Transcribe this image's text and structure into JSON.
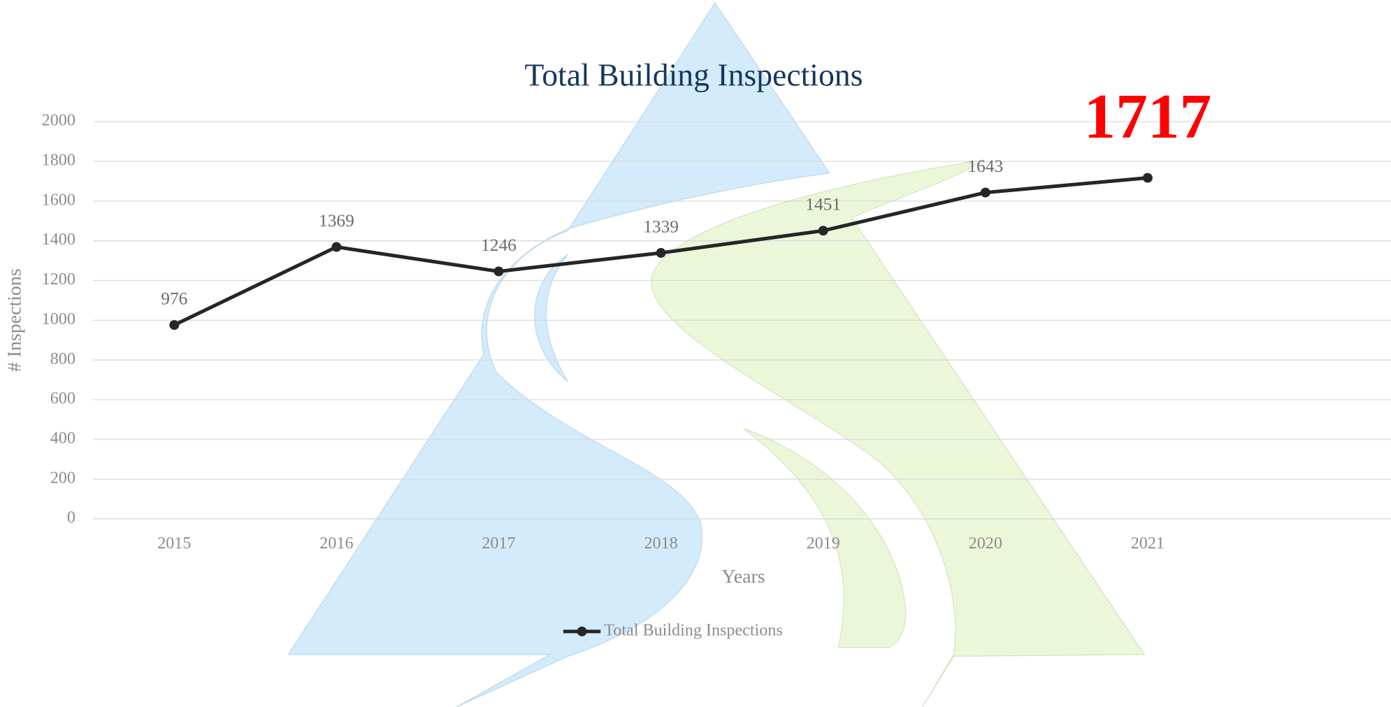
{
  "chart_data": {
    "type": "line",
    "title": "Total Building Inspections",
    "x_label": "Years",
    "y_label": "# Inspections",
    "categories": [
      "2015",
      "2016",
      "2017",
      "2018",
      "2019",
      "2020",
      "2021",
      null
    ],
    "series": [
      {
        "name": "Total Building Inspections",
        "color": "#262626",
        "values": [
          976,
          1369,
          1246,
          1339,
          1451,
          1643,
          1717,
          null
        ]
      }
    ],
    "highlight_color": "#ff0000",
    "ylim": [
      0,
      2000
    ],
    "yticks": [
      0,
      200,
      400,
      600,
      800,
      1000,
      1200,
      1400,
      1600,
      1800,
      2000
    ],
    "grid": true,
    "legend": "bottom"
  }
}
